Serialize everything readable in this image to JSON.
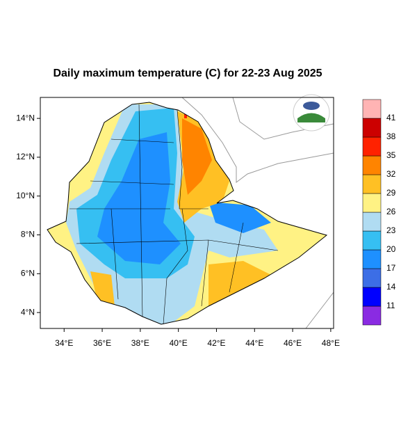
{
  "title": "Daily maximum temperature (C) for 22-23 Aug 2025",
  "map": {
    "xlim": [
      32.75,
      48.15
    ],
    "ylim": [
      3.18,
      15.08
    ],
    "xticks": [
      {
        "value": 34,
        "label": "34°E"
      },
      {
        "value": 36,
        "label": "36°E"
      },
      {
        "value": 38,
        "label": "38°E"
      },
      {
        "value": 40,
        "label": "40°E"
      },
      {
        "value": 42,
        "label": "42°E"
      },
      {
        "value": 44,
        "label": "44°E"
      },
      {
        "value": 46,
        "label": "46°E"
      },
      {
        "value": 48,
        "label": "48°E"
      }
    ],
    "yticks": [
      {
        "value": 4,
        "label": "4°N"
      },
      {
        "value": 6,
        "label": "6°N"
      },
      {
        "value": 8,
        "label": "8°N"
      },
      {
        "value": 10,
        "label": "10°N"
      },
      {
        "value": 12,
        "label": "12°N"
      },
      {
        "value": 14,
        "label": "14°N"
      }
    ]
  },
  "colorbar": {
    "levels": [
      11,
      14,
      17,
      20,
      23,
      26,
      29,
      32,
      35,
      38,
      41
    ],
    "colors": [
      "#8a2be2",
      "#0000ff",
      "#3c6ee6",
      "#1e90ff",
      "#36bff2",
      "#b0dcf2",
      "#fff284",
      "#ffc024",
      "#ff8400",
      "#ff2200",
      "#cc0000",
      "#ffb4b4"
    ]
  }
}
